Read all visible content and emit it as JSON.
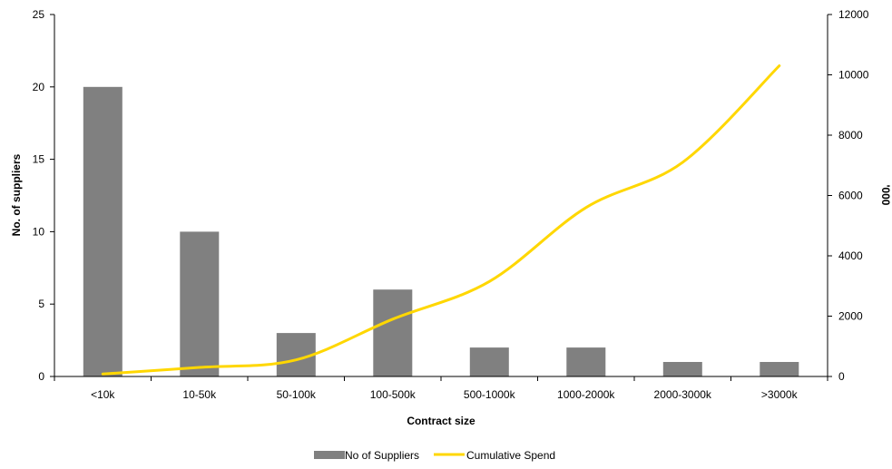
{
  "chart_data": {
    "type": "bar",
    "categories": [
      "<10k",
      "10-50k",
      "50-100k",
      "100-500k",
      "500-1000k",
      "1000-2000k",
      "2000-3000k",
      ">3000k"
    ],
    "series": [
      {
        "name": "No of Suppliers",
        "type": "bar",
        "axis": "left",
        "color": "#808080",
        "values": [
          20,
          10,
          3,
          6,
          2,
          2,
          1,
          1
        ]
      },
      {
        "name": "Cumulative Spend",
        "type": "line",
        "axis": "right",
        "color": "#FFD700",
        "values": [
          80,
          300,
          550,
          1900,
          3150,
          5600,
          7100,
          10300
        ]
      }
    ],
    "xlabel": "Contract size",
    "ylabel": "No. of suppliers",
    "y2label": "'000",
    "ylim": [
      0,
      25
    ],
    "yticks": [
      "0",
      "5",
      "10",
      "15",
      "20",
      "25"
    ],
    "y2lim": [
      0,
      12000
    ],
    "y2ticks": [
      "0",
      "2000",
      "4000",
      "6000",
      "8000",
      "10000",
      "12000"
    ],
    "grid": false,
    "legend_position": "bottom"
  }
}
